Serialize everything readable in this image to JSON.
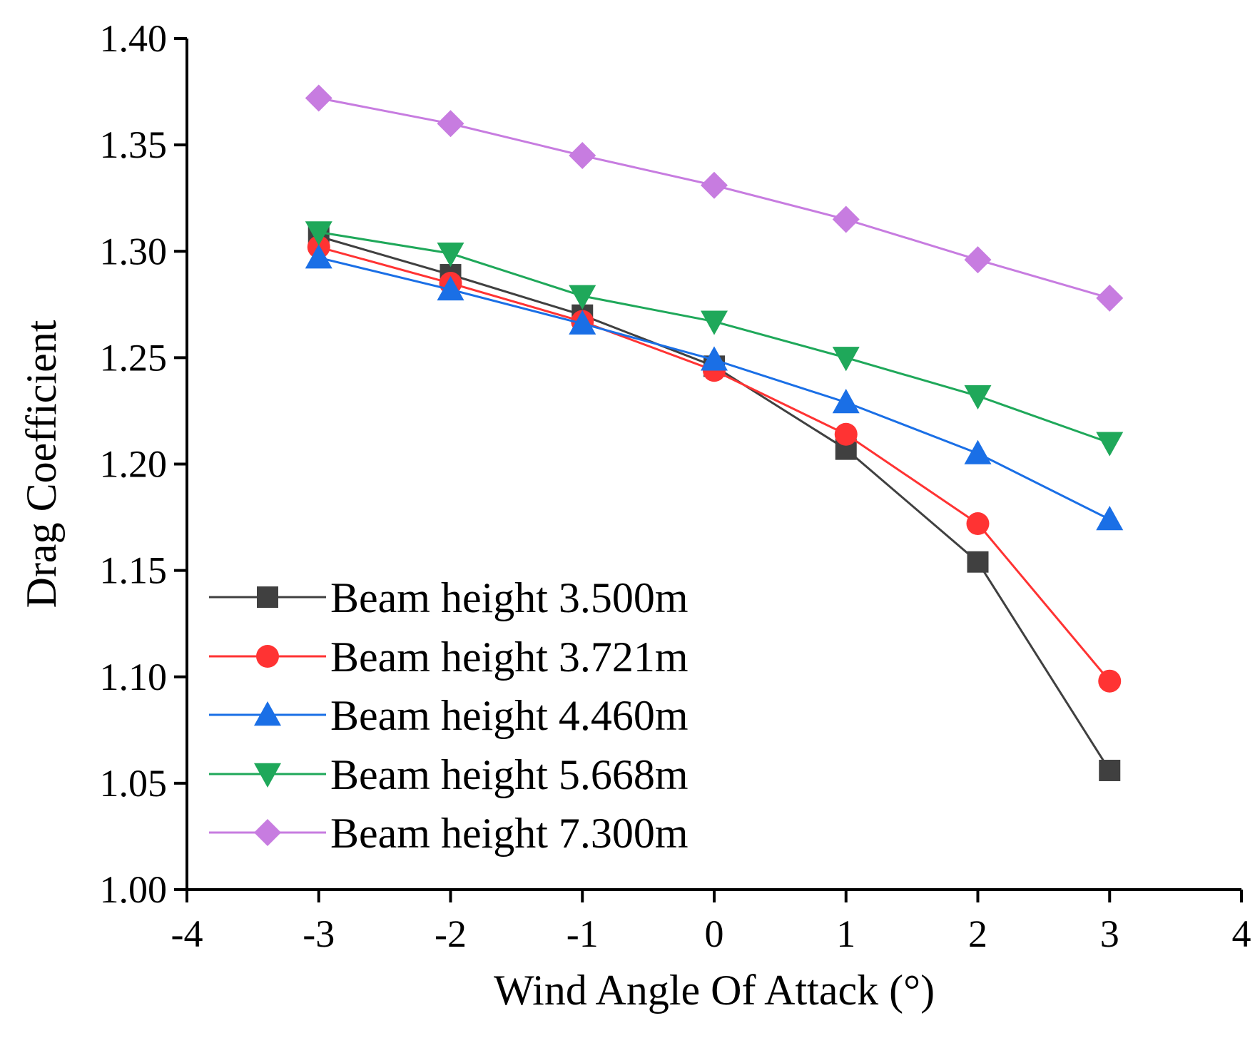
{
  "chart_data": {
    "type": "line",
    "title": "",
    "xlabel": "Wind Angle Of Attack (°)",
    "ylabel": "Drag Coefficient",
    "xlim": [
      -4,
      4
    ],
    "ylim": [
      1.0,
      1.4
    ],
    "x_ticks": [
      "-4",
      "-3",
      "-2",
      "-1",
      "0",
      "1",
      "2",
      "3",
      "4"
    ],
    "y_ticks": [
      "1.00",
      "1.05",
      "1.10",
      "1.15",
      "1.20",
      "1.25",
      "1.30",
      "1.35",
      "1.40"
    ],
    "grid": false,
    "legend_position": "bottom-left",
    "x": [
      -3,
      -2,
      -1,
      0,
      1,
      2,
      3
    ],
    "series": [
      {
        "name": "Beam height 3.500m",
        "marker": "square",
        "color": "#404040",
        "values": [
          1.307,
          1.289,
          1.27,
          1.246,
          1.207,
          1.154,
          1.056
        ]
      },
      {
        "name": "Beam height 3.721m",
        "marker": "circle",
        "color": "#ff3333",
        "values": [
          1.302,
          1.285,
          1.267,
          1.244,
          1.214,
          1.172,
          1.098
        ]
      },
      {
        "name": "Beam height 4.460m",
        "marker": "triangle-up",
        "color": "#1a6fe6",
        "values": [
          1.297,
          1.282,
          1.266,
          1.249,
          1.229,
          1.205,
          1.174
        ]
      },
      {
        "name": "Beam height 5.668m",
        "marker": "triangle-down",
        "color": "#1fa85a",
        "values": [
          1.309,
          1.299,
          1.279,
          1.267,
          1.25,
          1.232,
          1.21
        ]
      },
      {
        "name": "Beam height 7.300m",
        "marker": "diamond",
        "color": "#c77ce0",
        "values": [
          1.372,
          1.36,
          1.345,
          1.331,
          1.315,
          1.296,
          1.278
        ]
      }
    ]
  }
}
